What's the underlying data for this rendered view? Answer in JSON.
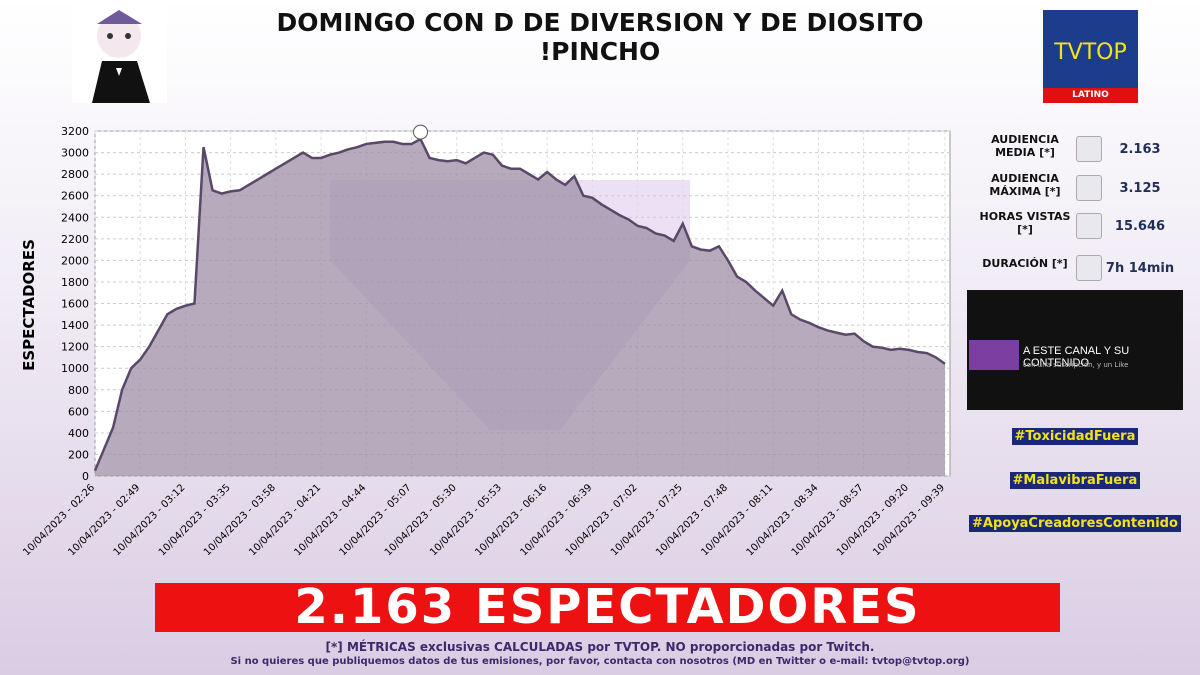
{
  "header": {
    "title_lines": [
      "DOMINGO CON D DE DIVERSION Y DE DIOSITO",
      "!PINCHO"
    ]
  },
  "logo": {
    "name": "TVTOP",
    "region": "LATINO"
  },
  "chart_data": {
    "type": "area",
    "y_label": "ESPECTADORES",
    "categories": [
      "10/04/2023 - 02:26",
      null,
      null,
      null,
      null,
      "10/04/2023 - 02:49",
      null,
      null,
      null,
      null,
      "10/04/2023 - 03:12",
      null,
      null,
      null,
      null,
      "10/04/2023 - 03:35",
      null,
      null,
      null,
      null,
      "10/04/2023 - 03:58",
      null,
      null,
      null,
      null,
      "10/04/2023 - 04:21",
      null,
      null,
      null,
      null,
      "10/04/2023 - 04:44",
      null,
      null,
      null,
      null,
      "10/04/2023 - 05:07",
      null,
      null,
      null,
      null,
      "10/04/2023 - 05:30",
      null,
      null,
      null,
      null,
      "10/04/2023 - 05:53",
      null,
      null,
      null,
      null,
      "10/04/2023 - 06:16",
      null,
      null,
      null,
      null,
      "10/04/2023 - 06:39",
      null,
      null,
      null,
      null,
      "10/04/2023 - 07:02",
      null,
      null,
      null,
      null,
      "10/04/2023 - 07:25",
      null,
      null,
      null,
      null,
      "10/04/2023 - 07:48",
      null,
      null,
      null,
      null,
      "10/04/2023 - 08:11",
      null,
      null,
      null,
      null,
      "10/04/2023 - 08:34",
      null,
      null,
      null,
      null,
      "10/04/2023 - 08:57",
      null,
      null,
      null,
      null,
      "10/04/2023 - 09:20",
      null,
      null,
      null,
      "10/04/2023 - 09:39"
    ],
    "values": [
      50,
      250,
      450,
      800,
      1000,
      1080,
      1200,
      1350,
      1500,
      1550,
      1580,
      1600,
      3050,
      2650,
      2620,
      2640,
      2650,
      2700,
      2750,
      2800,
      2850,
      2900,
      2950,
      3000,
      2950,
      2950,
      2980,
      3000,
      3030,
      3050,
      3080,
      3090,
      3100,
      3100,
      3080,
      3080,
      3125,
      2950,
      2930,
      2920,
      2930,
      2900,
      2950,
      3000,
      2980,
      2880,
      2850,
      2850,
      2800,
      2750,
      2820,
      2750,
      2700,
      2780,
      2600,
      2580,
      2520,
      2470,
      2420,
      2380,
      2320,
      2300,
      2250,
      2230,
      2180,
      2340,
      2130,
      2100,
      2090,
      2130,
      2000,
      1850,
      1800,
      1720,
      1650,
      1580,
      1720,
      1500,
      1450,
      1420,
      1380,
      1350,
      1330,
      1310,
      1320,
      1250,
      1200,
      1190,
      1170,
      1180,
      1170,
      1150,
      1140,
      1100,
      1040
    ],
    "color": "#5a4868",
    "fill": "#9d8da6",
    "ylim": [
      0,
      3200
    ],
    "yticks": [
      0,
      200,
      400,
      600,
      800,
      1000,
      1200,
      1400,
      1600,
      1800,
      2000,
      2200,
      2400,
      2600,
      2800,
      3000,
      3200
    ],
    "grid": true
  },
  "stats": [
    {
      "label": "AUDIENCIA MEDIA [*]",
      "value": "2.163"
    },
    {
      "label": "AUDIENCIA MÁXIMA [*]",
      "value": "3.125"
    },
    {
      "label": "HORAS VISTAS [*]",
      "value": "15.646"
    },
    {
      "label": "DURACIÓN [*]",
      "value": "7h 14min"
    }
  ],
  "thumbnail": {
    "headline": "A ESTE CANAL Y SU CONTENIDO",
    "subline": "con una suscripción, y un Like"
  },
  "hashtags": [
    "#ToxicidadFuera",
    "#MalavibraFuera",
    "#ApoyaCreadoresContenido"
  ],
  "banner": "2.163 ESPECTADORES",
  "footer": {
    "note": "[*] MÉTRICAS exclusivas CALCULADAS por TVTOP. NO proporcionadas por Twitch.",
    "contact": "Si no quieres que publiquemos datos de tus emisiones, por favor, contacta con nosotros (MD en Twitter o e-mail: tvtop@tvtop.org)"
  }
}
